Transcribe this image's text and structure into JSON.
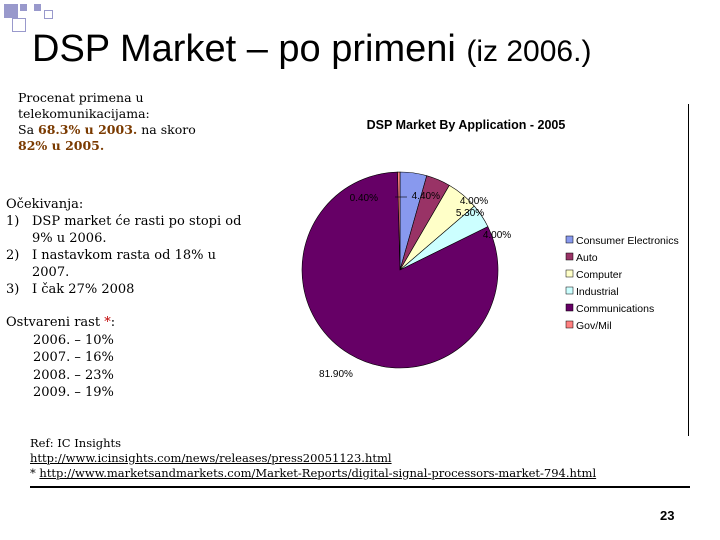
{
  "slide": {
    "title_main": "DSP Market – po primeni",
    "title_sub": "(iz 2006.)",
    "page_number": "23"
  },
  "intro": {
    "line1": "Procenat primena u telekomunikacijama:",
    "pre": "Sa ",
    "v1": "68.3% u 2003.",
    "mid": " na skoro",
    "v2": "82% u 2005."
  },
  "expectations": {
    "heading": "Očekivanja:",
    "items": [
      {
        "num": "1)",
        "text": "DSP market će rasti po stopi od 9% u 2006."
      },
      {
        "num": "2)",
        "text": "I nastavkom rasta  od 18% u  2007."
      },
      {
        "num": "3)",
        "text": "I čak 27%  2008"
      }
    ]
  },
  "realized": {
    "heading": "Ostvareni rast ",
    "star": "*",
    "colon": ":",
    "years": [
      "2006. – 10%",
      "2007. – 16%",
      "2008. – 23%",
      "2009. – 19%"
    ]
  },
  "references": {
    "label": "Ref: IC Insights",
    "link1": "http://www.icinsights.com/news/releases/press20051123.html",
    "star": "*",
    "link2": "http://www.marketsandmarkets.com/Market-Reports/digital-signal-processors-market-794.html"
  },
  "chart_data": {
    "type": "pie",
    "title": "DSP Market By Application - 2005",
    "unit": "%",
    "legend_position": "right",
    "slices": [
      {
        "name": "Consumer Electronics",
        "value": 4.4,
        "label": "4.40%",
        "color": "#8899ee"
      },
      {
        "name": "Auto",
        "value": 4.0,
        "label": "4.00%",
        "color": "#993366"
      },
      {
        "name": "Computer",
        "value": 5.3,
        "label": "5.30%",
        "color": "#ffffc8"
      },
      {
        "name": "Industrial",
        "value": 4.0,
        "label": "4.00%",
        "color": "#ccffff"
      },
      {
        "name": "Communications",
        "value": 81.9,
        "label": "81.90%",
        "color": "#660066"
      },
      {
        "name": "Gov/Mil",
        "value": 0.4,
        "label": "0.40%",
        "color": "#ff8080"
      }
    ]
  }
}
